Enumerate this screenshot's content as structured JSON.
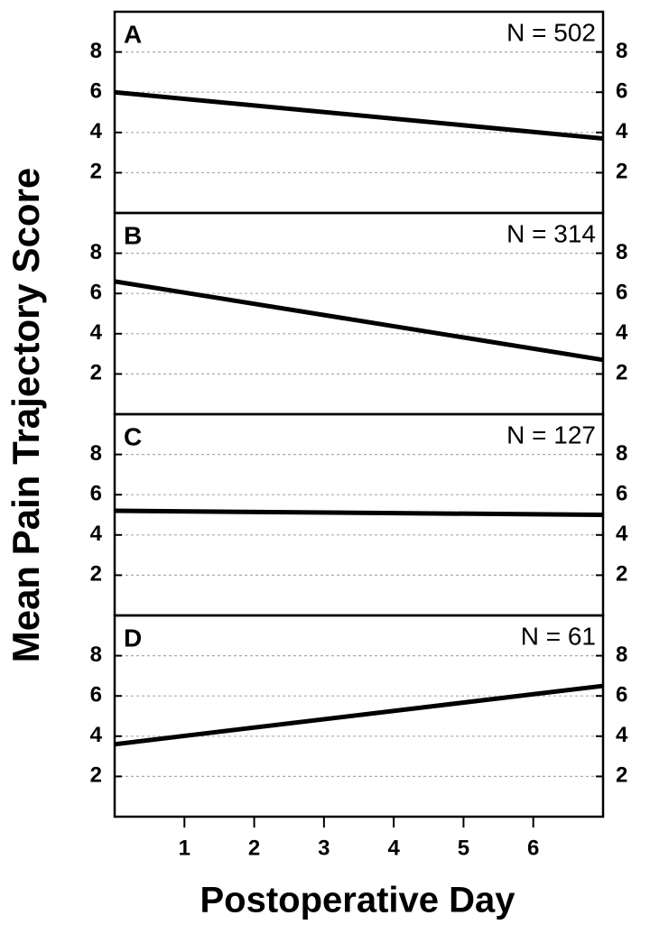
{
  "chart_data": {
    "type": "line",
    "ylabel": "Mean Pain Trajectory Score",
    "xlabel": "Postoperative Day",
    "xlim": [
      0,
      7
    ],
    "xticks": [
      1,
      2,
      3,
      4,
      5,
      6
    ],
    "ylim": [
      0,
      10
    ],
    "yticks": [
      2,
      4,
      6,
      8
    ],
    "grid": true,
    "color": "#000000",
    "panels": [
      {
        "label": "A",
        "annotation": "N = 502",
        "x": [
          0,
          7
        ],
        "values": [
          6.0,
          3.7
        ]
      },
      {
        "label": "B",
        "annotation": "N = 314",
        "x": [
          0,
          7
        ],
        "values": [
          6.6,
          2.7
        ]
      },
      {
        "label": "C",
        "annotation": "N = 127",
        "x": [
          0,
          7
        ],
        "values": [
          5.2,
          5.0
        ]
      },
      {
        "label": "D",
        "annotation": "N = 61",
        "x": [
          0,
          7
        ],
        "values": [
          3.6,
          6.5
        ]
      }
    ]
  }
}
